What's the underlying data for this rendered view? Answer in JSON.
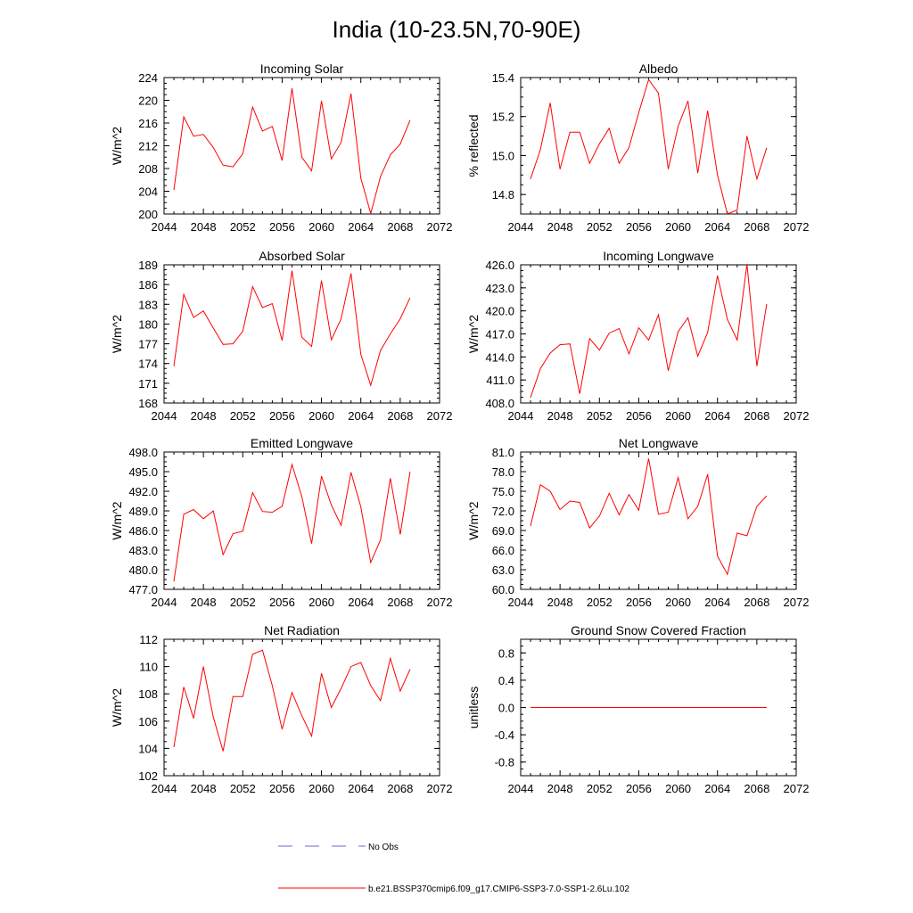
{
  "title": "India (10-23.5N,70-90E)",
  "colors": {
    "series": "#ff0000",
    "obs": "#6a6ad0",
    "axis": "#000000"
  },
  "legend": {
    "obs_label": "No Obs",
    "model_label": "b.e21.BSSP370cmip6.f09_g17.CMIP6-SSP3-7.0-SSP1-2.6Lu.102"
  },
  "chart_data": [
    {
      "type": "line",
      "title": "Incoming Solar",
      "ylabel": "W/m^2",
      "xlim": [
        2044,
        2072
      ],
      "ylim": [
        200,
        224
      ],
      "xticks": [
        "2044",
        "2048",
        "2052",
        "2056",
        "2060",
        "2064",
        "2068",
        "2072"
      ],
      "yticks": [
        "200",
        "204",
        "208",
        "212",
        "216",
        "220",
        "224"
      ],
      "x": [
        2045,
        2046,
        2047,
        2048,
        2049,
        2050,
        2051,
        2052,
        2053,
        2054,
        2055,
        2056,
        2057,
        2058,
        2059,
        2060,
        2061,
        2062,
        2063,
        2064,
        2065,
        2066,
        2067,
        2068,
        2069
      ],
      "values": [
        204.2,
        217.1,
        213.7,
        214.0,
        211.7,
        208.6,
        208.3,
        210.6,
        218.8,
        214.6,
        215.4,
        209.4,
        222.1,
        210.0,
        207.6,
        219.9,
        209.7,
        212.6,
        221.2,
        206.3,
        200.1,
        206.6,
        210.4,
        212.3,
        216.5
      ]
    },
    {
      "type": "line",
      "title": "Albedo",
      "ylabel": "% reflected",
      "xlim": [
        2044,
        2072
      ],
      "ylim": [
        14.7,
        15.4
      ],
      "xticks": [
        "2044",
        "2048",
        "2052",
        "2056",
        "2060",
        "2064",
        "2068",
        "2072"
      ],
      "yticks": [
        "14.8",
        "15.0",
        "15.2",
        "15.4"
      ],
      "x": [
        2045,
        2046,
        2047,
        2048,
        2049,
        2050,
        2051,
        2052,
        2053,
        2054,
        2055,
        2056,
        2057,
        2058,
        2059,
        2060,
        2061,
        2062,
        2063,
        2064,
        2065,
        2066,
        2067,
        2068,
        2069
      ],
      "values": [
        14.88,
        15.03,
        15.27,
        14.93,
        15.12,
        15.12,
        14.96,
        15.06,
        15.14,
        14.96,
        15.04,
        15.22,
        15.39,
        15.32,
        14.93,
        15.15,
        15.28,
        14.91,
        15.23,
        14.9,
        14.7,
        14.72,
        15.1,
        14.88,
        15.04
      ]
    },
    {
      "type": "line",
      "title": "Absorbed Solar",
      "ylabel": "W/m^2",
      "xlim": [
        2044,
        2072
      ],
      "ylim": [
        168,
        189
      ],
      "xticks": [
        "2044",
        "2048",
        "2052",
        "2056",
        "2060",
        "2064",
        "2068",
        "2072"
      ],
      "yticks": [
        "168",
        "171",
        "174",
        "177",
        "180",
        "183",
        "186",
        "189"
      ],
      "x": [
        2045,
        2046,
        2047,
        2048,
        2049,
        2050,
        2051,
        2052,
        2053,
        2054,
        2055,
        2056,
        2057,
        2058,
        2059,
        2060,
        2061,
        2062,
        2063,
        2064,
        2065,
        2066,
        2067,
        2068,
        2069
      ],
      "values": [
        173.6,
        184.5,
        181.0,
        182.0,
        179.4,
        176.9,
        177.0,
        178.9,
        185.7,
        182.5,
        183.1,
        177.5,
        188.1,
        178.0,
        176.6,
        186.6,
        177.6,
        180.8,
        187.7,
        175.4,
        170.7,
        176.0,
        178.5,
        180.8,
        184.0
      ]
    },
    {
      "type": "line",
      "title": "Incoming Longwave",
      "ylabel": "W/m^2",
      "xlim": [
        2044,
        2072
      ],
      "ylim": [
        408,
        426
      ],
      "xticks": [
        "2044",
        "2048",
        "2052",
        "2056",
        "2060",
        "2064",
        "2068",
        "2072"
      ],
      "yticks": [
        "408.0",
        "411.0",
        "414.0",
        "417.0",
        "420.0",
        "423.0",
        "426.0"
      ],
      "x": [
        2045,
        2046,
        2047,
        2048,
        2049,
        2050,
        2051,
        2052,
        2053,
        2054,
        2055,
        2056,
        2057,
        2058,
        2059,
        2060,
        2061,
        2062,
        2063,
        2064,
        2065,
        2066,
        2067,
        2068,
        2069
      ],
      "values": [
        408.7,
        412.5,
        414.5,
        415.6,
        415.7,
        409.2,
        416.4,
        414.9,
        417.1,
        417.7,
        414.4,
        417.8,
        416.2,
        419.5,
        412.2,
        417.3,
        419.1,
        414.1,
        417.2,
        424.6,
        418.9,
        416.2,
        426.1,
        412.8,
        420.9
      ]
    },
    {
      "type": "line",
      "title": "Emitted Longwave",
      "ylabel": "W/m^2",
      "xlim": [
        2044,
        2072
      ],
      "ylim": [
        477,
        498
      ],
      "xticks": [
        "2044",
        "2048",
        "2052",
        "2056",
        "2060",
        "2064",
        "2068",
        "2072"
      ],
      "yticks": [
        "477.0",
        "480.0",
        "483.0",
        "486.0",
        "489.0",
        "492.0",
        "495.0",
        "498.0"
      ],
      "x": [
        2045,
        2046,
        2047,
        2048,
        2049,
        2050,
        2051,
        2052,
        2053,
        2054,
        2055,
        2056,
        2057,
        2058,
        2059,
        2060,
        2061,
        2062,
        2063,
        2064,
        2065,
        2066,
        2067,
        2068,
        2069
      ],
      "values": [
        478.2,
        488.5,
        489.2,
        487.8,
        489.0,
        482.3,
        485.5,
        485.9,
        491.8,
        488.9,
        488.8,
        489.7,
        496.1,
        491.2,
        484.0,
        494.3,
        489.9,
        486.8,
        494.9,
        489.6,
        481.1,
        484.6,
        494.0,
        485.4,
        495.0
      ]
    },
    {
      "type": "line",
      "title": "Net Longwave",
      "ylabel": "W/m^2",
      "xlim": [
        2044,
        2072
      ],
      "ylim": [
        60,
        81
      ],
      "xticks": [
        "2044",
        "2048",
        "2052",
        "2056",
        "2060",
        "2064",
        "2068",
        "2072"
      ],
      "yticks": [
        "60.0",
        "63.0",
        "66.0",
        "69.0",
        "72.0",
        "75.0",
        "78.0",
        "81.0"
      ],
      "x": [
        2045,
        2046,
        2047,
        2048,
        2049,
        2050,
        2051,
        2052,
        2053,
        2054,
        2055,
        2056,
        2057,
        2058,
        2059,
        2060,
        2061,
        2062,
        2063,
        2064,
        2065,
        2066,
        2067,
        2068,
        2069
      ],
      "values": [
        69.7,
        76.0,
        75.0,
        72.2,
        73.5,
        73.3,
        69.4,
        71.2,
        74.7,
        71.4,
        74.5,
        72.1,
        80.0,
        71.5,
        71.8,
        77.1,
        70.8,
        72.7,
        77.6,
        65.1,
        62.3,
        68.6,
        68.2,
        72.7,
        74.3
      ]
    },
    {
      "type": "line",
      "title": "Net Radiation",
      "ylabel": "W/m^2",
      "xlim": [
        2044,
        2072
      ],
      "ylim": [
        102,
        112
      ],
      "xticks": [
        "2044",
        "2048",
        "2052",
        "2056",
        "2060",
        "2064",
        "2068",
        "2072"
      ],
      "yticks": [
        "102",
        "104",
        "106",
        "108",
        "110",
        "112"
      ],
      "x": [
        2045,
        2046,
        2047,
        2048,
        2049,
        2050,
        2051,
        2052,
        2053,
        2054,
        2055,
        2056,
        2057,
        2058,
        2059,
        2060,
        2061,
        2062,
        2063,
        2064,
        2065,
        2066,
        2067,
        2068,
        2069
      ],
      "values": [
        104.1,
        108.5,
        106.2,
        110.0,
        106.3,
        103.8,
        107.8,
        107.8,
        110.9,
        111.2,
        108.6,
        105.4,
        108.1,
        106.4,
        104.9,
        109.5,
        107.0,
        108.4,
        110.0,
        110.3,
        108.6,
        107.5,
        110.6,
        108.2,
        109.8
      ]
    },
    {
      "type": "line",
      "title": "Ground Snow Covered Fraction",
      "ylabel": "unitless",
      "xlim": [
        2044,
        2072
      ],
      "ylim": [
        -1.0,
        1.0
      ],
      "xticks": [
        "2044",
        "2048",
        "2052",
        "2056",
        "2060",
        "2064",
        "2068",
        "2072"
      ],
      "yticks": [
        "-0.8",
        "-0.4",
        "0.0",
        "0.4",
        "0.8"
      ],
      "x": [
        2045,
        2046,
        2047,
        2048,
        2049,
        2050,
        2051,
        2052,
        2053,
        2054,
        2055,
        2056,
        2057,
        2058,
        2059,
        2060,
        2061,
        2062,
        2063,
        2064,
        2065,
        2066,
        2067,
        2068,
        2069
      ],
      "values": [
        0,
        0,
        0,
        0,
        0,
        0,
        0,
        0,
        0,
        0,
        0,
        0,
        0,
        0,
        0,
        0,
        0,
        0,
        0,
        0,
        0,
        0,
        0,
        0,
        0
      ]
    }
  ]
}
